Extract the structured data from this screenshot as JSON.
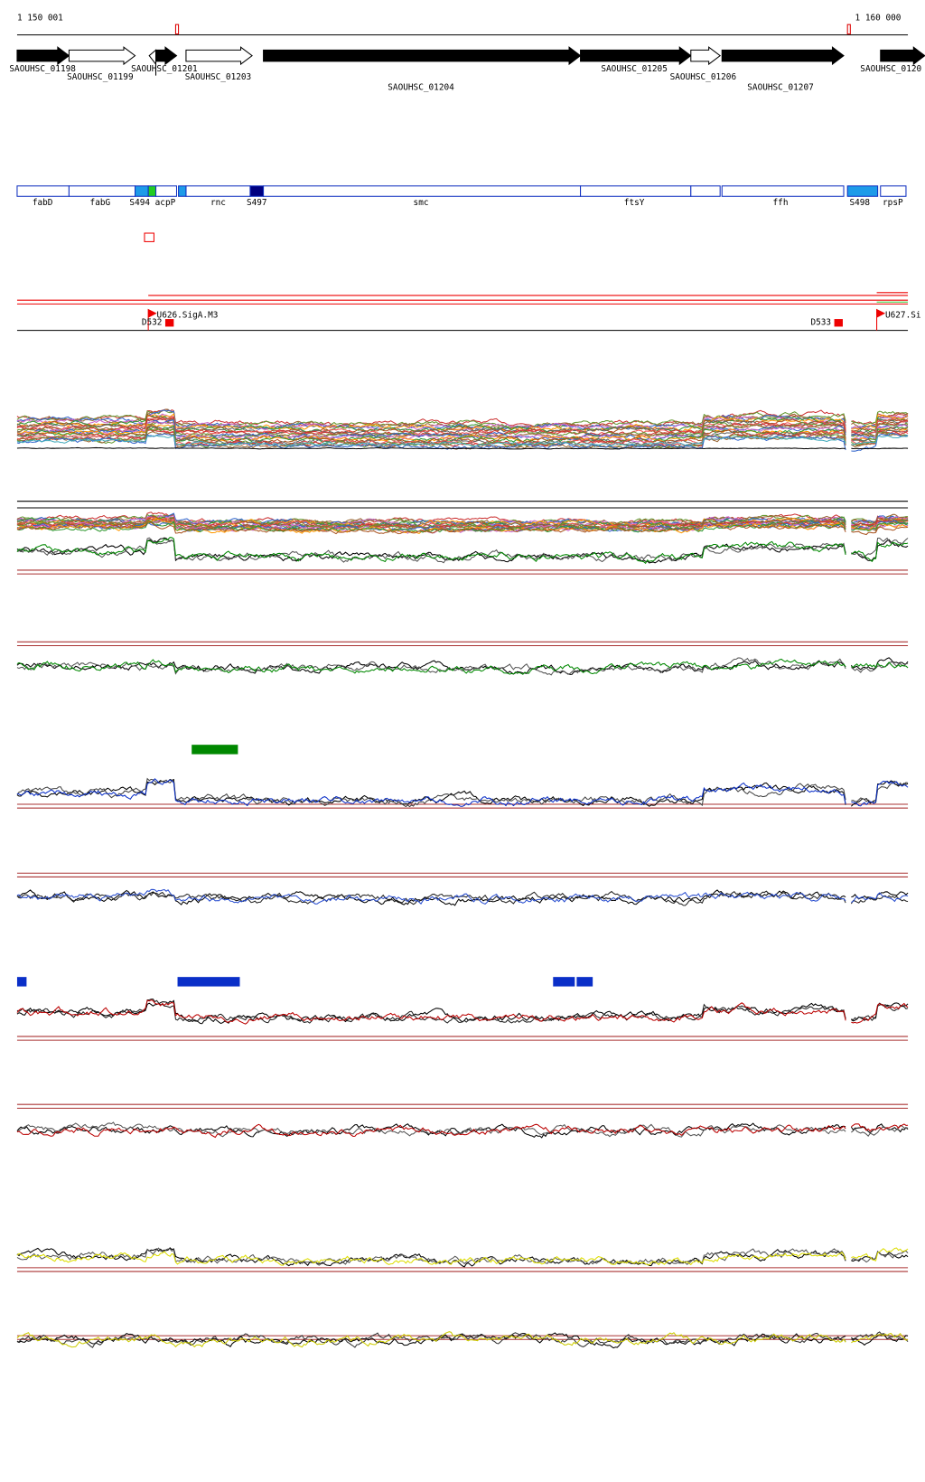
{
  "ruler": {
    "start": "1 150 001",
    "end": "1 160 000"
  },
  "genes": [
    "SAOUHSC_01198",
    "SAOUHSC_01199",
    "SAOUHSC_01201",
    "SAOUHSC_01203",
    "SAOUHSC_01204",
    "SAOUHSC_01205",
    "SAOUHSC_01206",
    "SAOUHSC_01207",
    "SAOUHSC_0120"
  ],
  "features": [
    "fabD",
    "fabG",
    "S494",
    "acpP",
    "rnc",
    "S497",
    "smc",
    "ftsY",
    "ffh",
    "S498",
    "rpsP"
  ],
  "promoters": [
    "U626.SigA.M3",
    "D532",
    "D533",
    "U627.Si"
  ]
}
